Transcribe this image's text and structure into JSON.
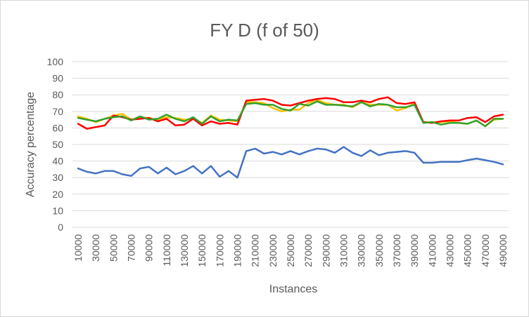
{
  "chart_data": {
    "type": "line",
    "title": "FY D (f of 50)",
    "xlabel": "Instances",
    "ylabel": "Accuracy percentage",
    "ylim": [
      0,
      100
    ],
    "y_ticks": [
      0,
      10,
      20,
      30,
      40,
      50,
      60,
      70,
      80,
      90,
      100
    ],
    "x_tick_labels": [
      "10000",
      "30000",
      "50000",
      "70000",
      "90000",
      "110000",
      "130000",
      "150000",
      "170000",
      "190000",
      "210000",
      "230000",
      "250000",
      "270000",
      "290000",
      "310000",
      "330000",
      "350000",
      "370000",
      "390000",
      "410000",
      "430000",
      "450000",
      "470000",
      "490000"
    ],
    "grid": "horizontal",
    "legend": "none",
    "x": [
      10000,
      20000,
      30000,
      40000,
      50000,
      60000,
      70000,
      80000,
      90000,
      100000,
      110000,
      120000,
      130000,
      140000,
      150000,
      160000,
      170000,
      180000,
      190000,
      200000,
      210000,
      220000,
      230000,
      240000,
      250000,
      260000,
      270000,
      280000,
      290000,
      300000,
      310000,
      320000,
      330000,
      340000,
      350000,
      360000,
      370000,
      380000,
      390000,
      400000,
      410000,
      420000,
      430000,
      440000,
      450000,
      460000,
      470000,
      480000,
      490000
    ],
    "series": [
      {
        "color": "#4472c4",
        "values": [
          35.5,
          33.5,
          32.5,
          34,
          34,
          32,
          31,
          35.5,
          36.5,
          32.5,
          36,
          32,
          34,
          37,
          32.5,
          37,
          30.5,
          34,
          30,
          46,
          47.5,
          44.5,
          45.5,
          44,
          46,
          44,
          46,
          47.5,
          47,
          45,
          48.5,
          45,
          43,
          46.5,
          43.5,
          45,
          45.5,
          46,
          45,
          39,
          39,
          39.5,
          39.5,
          39.5,
          40.5,
          41.5,
          40.5,
          39.5,
          38
        ]
      },
      {
        "color": "#ffc000",
        "values": [
          67,
          65.5,
          63.5,
          65.5,
          67.5,
          68.5,
          65,
          66.5,
          66,
          65,
          66.5,
          66,
          65,
          65.5,
          63,
          67.5,
          65,
          64.5,
          64,
          75.5,
          75.5,
          75,
          72,
          70,
          71,
          71,
          75,
          77,
          75,
          74,
          74,
          72.5,
          75.5,
          74,
          74,
          74,
          70.5,
          72,
          75,
          63.5,
          63.5,
          63.5,
          64,
          63,
          62.5,
          64.5,
          61,
          65,
          65.5
        ]
      },
      {
        "color": "#ff0000",
        "values": [
          62.5,
          59.5,
          60.5,
          61.5,
          67.5,
          66.5,
          65,
          65.5,
          66,
          64,
          65.5,
          61.5,
          62,
          65.5,
          61.5,
          64,
          62.5,
          63,
          62,
          76.5,
          77,
          77.5,
          76.5,
          74,
          73.5,
          75,
          76.5,
          77.5,
          78,
          77.5,
          75.5,
          75.5,
          76.5,
          75.5,
          77.5,
          78.5,
          75,
          74.5,
          75.5,
          63.5,
          63,
          64,
          64.5,
          64.5,
          66,
          66.5,
          63.5,
          67,
          68
        ]
      },
      {
        "color": "#33a02c",
        "values": [
          66,
          65,
          64,
          65.5,
          66.5,
          67,
          64.5,
          67,
          65,
          65.5,
          68,
          65.5,
          64,
          66.5,
          62.5,
          67,
          64,
          65,
          64.5,
          74.5,
          75,
          74,
          74,
          71.5,
          70.5,
          74.5,
          73.5,
          76,
          74,
          74,
          73.5,
          73,
          75.5,
          73,
          74.5,
          74,
          72.5,
          72.5,
          74,
          63,
          63.5,
          62,
          63,
          63,
          62.5,
          64.5,
          61,
          65.5,
          65.5
        ]
      }
    ]
  }
}
